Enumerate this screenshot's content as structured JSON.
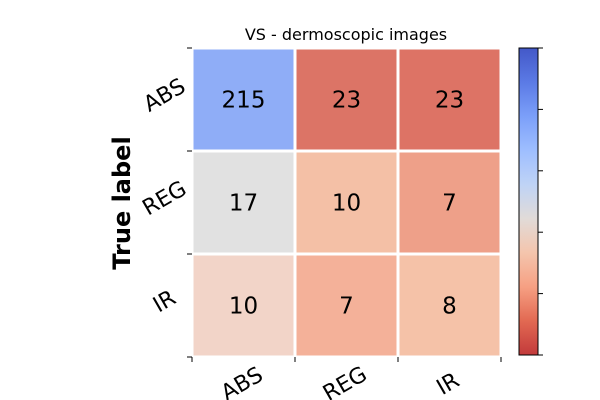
{
  "chart_data": {
    "type": "heatmap",
    "title": "VS - dermoscopic images",
    "ylabel": "True label",
    "xlabel": "",
    "row_labels": [
      "ABS",
      "REG",
      "IR"
    ],
    "col_labels": [
      "ABS",
      "REG",
      "IR"
    ],
    "values": [
      [
        215,
        23,
        23
      ],
      [
        17,
        10,
        7
      ],
      [
        10,
        7,
        8
      ]
    ],
    "colormap": "coolwarm_r",
    "cell_colors": [
      [
        "#8fadf7",
        "#dc7466",
        "#dd7365"
      ],
      [
        "#e1e1e1",
        "#f4c0a6",
        "#eea089"
      ],
      [
        "#f2d4c8",
        "#f4b199",
        "#f5c2a8"
      ]
    ],
    "colorbar_colors": [
      "#c23a3b",
      "#e26952",
      "#f6a083",
      "#f4c5ad",
      "#e1dbd8",
      "#bfd3f6",
      "#9ebeff",
      "#7b9ff9",
      "#5b7ae5",
      "#4358c8"
    ]
  }
}
